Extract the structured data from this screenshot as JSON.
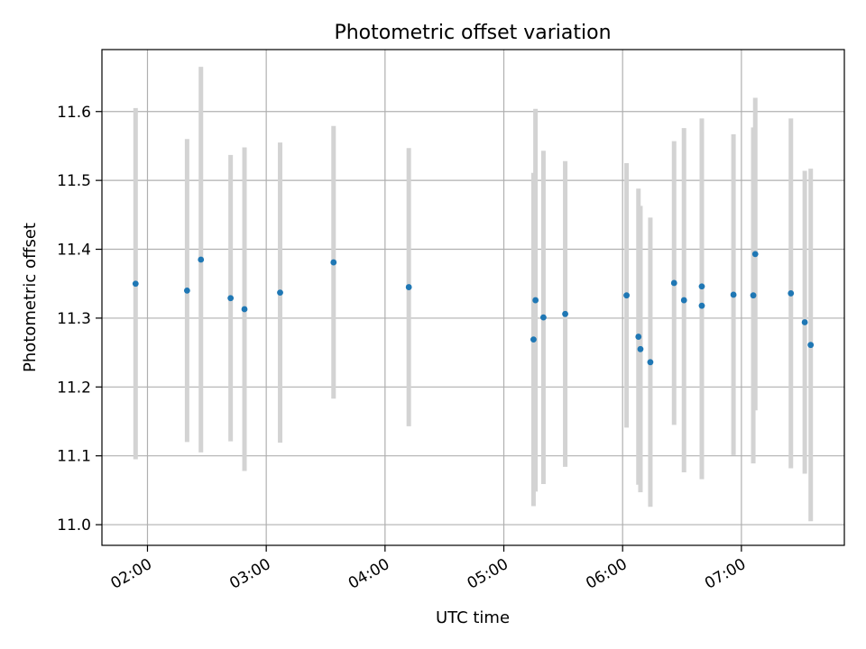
{
  "chart_data": {
    "type": "scatter",
    "title": "Photometric offset variation",
    "xlabel": "UTC time",
    "ylabel": "Photometric offset",
    "x_ticks": [
      "02:00",
      "03:00",
      "04:00",
      "05:00",
      "06:00",
      "07:00"
    ],
    "y_ticks": [
      "11.0",
      "11.1",
      "11.2",
      "11.3",
      "11.4",
      "11.5",
      "11.6"
    ],
    "xlim": [
      "01:37",
      "07:52"
    ],
    "ylim": [
      10.97,
      11.69
    ],
    "grid": true,
    "marker_color": "#1f77b4",
    "errorbar_color": "#d3d3d3",
    "points": [
      {
        "time": "01:54",
        "y": 11.35,
        "err": 0.255
      },
      {
        "time": "02:20",
        "y": 11.34,
        "err": 0.22
      },
      {
        "time": "02:27",
        "y": 11.385,
        "err": 0.28
      },
      {
        "time": "02:42",
        "y": 11.329,
        "err": 0.208
      },
      {
        "time": "02:49",
        "y": 11.313,
        "err": 0.235
      },
      {
        "time": "03:07",
        "y": 11.337,
        "err": 0.218
      },
      {
        "time": "03:34",
        "y": 11.381,
        "err": 0.198
      },
      {
        "time": "04:12",
        "y": 11.345,
        "err": 0.202
      },
      {
        "time": "05:15",
        "y": 11.269,
        "err": 0.242
      },
      {
        "time": "05:16",
        "y": 11.326,
        "err": 0.278
      },
      {
        "time": "05:20",
        "y": 11.301,
        "err": 0.242
      },
      {
        "time": "05:31",
        "y": 11.306,
        "err": 0.222
      },
      {
        "time": "06:02",
        "y": 11.333,
        "err": 0.192
      },
      {
        "time": "06:08",
        "y": 11.273,
        "err": 0.215
      },
      {
        "time": "06:09",
        "y": 11.255,
        "err": 0.208
      },
      {
        "time": "06:14",
        "y": 11.236,
        "err": 0.21
      },
      {
        "time": "06:26",
        "y": 11.351,
        "err": 0.206
      },
      {
        "time": "06:31",
        "y": 11.326,
        "err": 0.25
      },
      {
        "time": "06:40",
        "y": 11.346,
        "err": 0.244
      },
      {
        "time": "06:40",
        "y": 11.318,
        "err": 0.252
      },
      {
        "time": "06:56",
        "y": 11.334,
        "err": 0.233
      },
      {
        "time": "07:06",
        "y": 11.333,
        "err": 0.244
      },
      {
        "time": "07:07",
        "y": 11.393,
        "err": 0.227
      },
      {
        "time": "07:25",
        "y": 11.336,
        "err": 0.254
      },
      {
        "time": "07:32",
        "y": 11.294,
        "err": 0.22
      },
      {
        "time": "07:35",
        "y": 11.261,
        "err": 0.256
      }
    ]
  }
}
